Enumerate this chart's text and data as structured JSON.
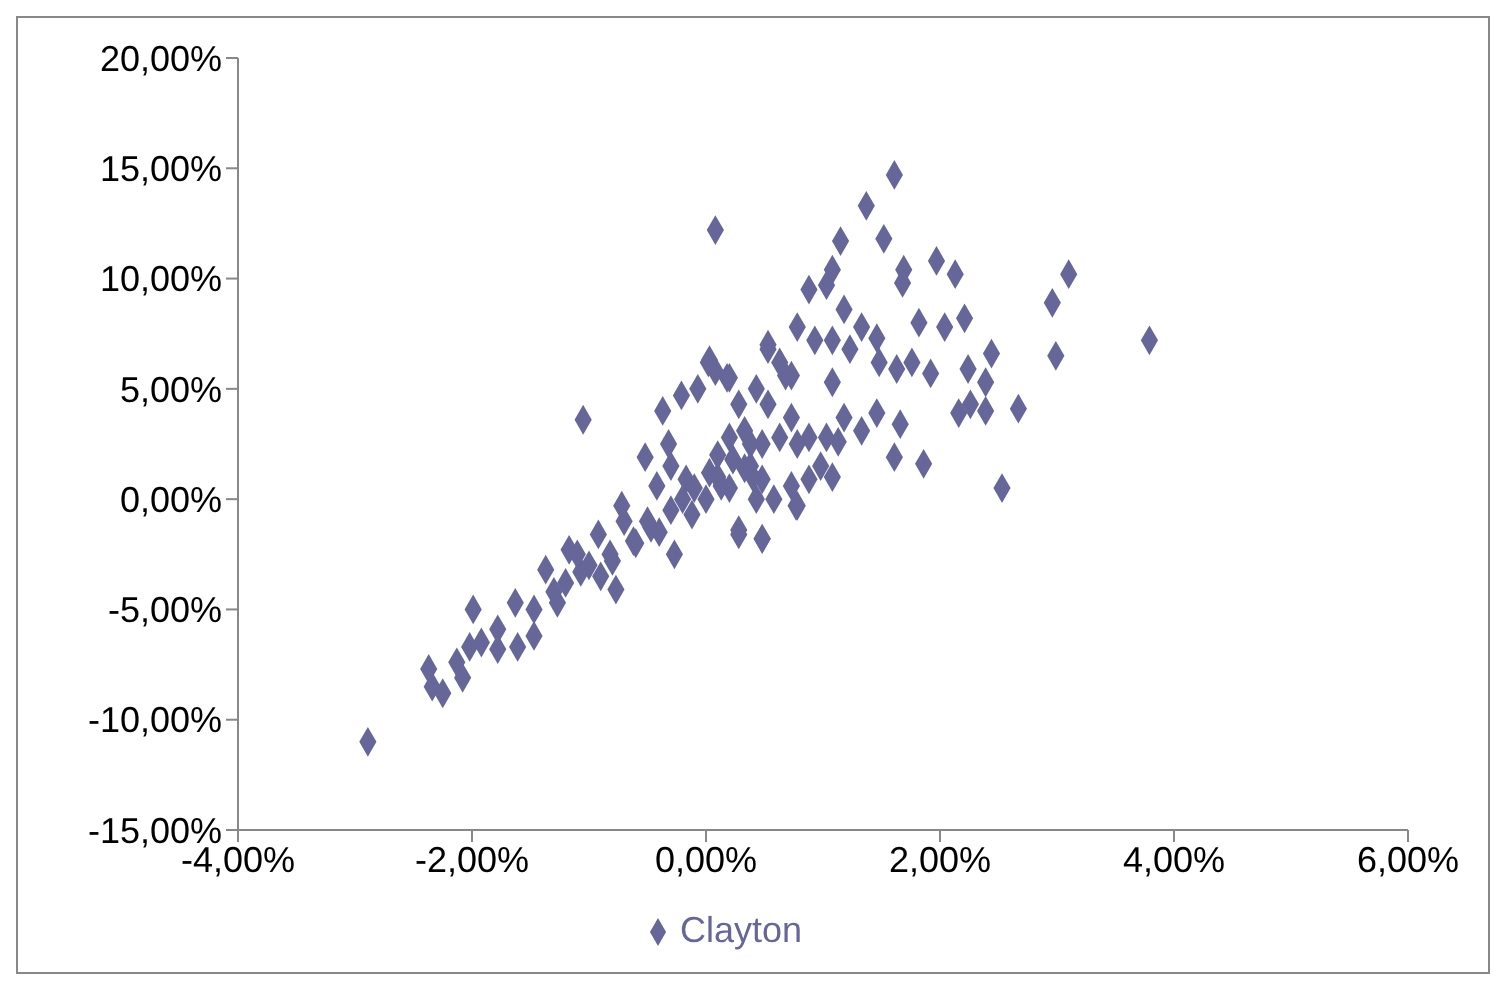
{
  "chart_data": {
    "type": "scatter",
    "legend": "bottom",
    "marker": "diamond",
    "xlim": [
      -4,
      6
    ],
    "xticks": [
      {
        "value": -4,
        "label": "-4,00%"
      },
      {
        "value": -2,
        "label": "-2,00%"
      },
      {
        "value": 0,
        "label": "0,00%"
      },
      {
        "value": 2,
        "label": "2,00%"
      },
      {
        "value": 4,
        "label": "4,00%"
      },
      {
        "value": 6,
        "label": "6,00%"
      }
    ],
    "ylim": [
      -15,
      20
    ],
    "yticks": [
      {
        "value": -15,
        "label": "-15,00%"
      },
      {
        "value": -10,
        "label": "-10,00%"
      },
      {
        "value": -5,
        "label": "-5,00%"
      },
      {
        "value": 0,
        "label": "0,00%"
      },
      {
        "value": 5,
        "label": "5,00%"
      },
      {
        "value": 10,
        "label": "10,00%"
      },
      {
        "value": 15,
        "label": "15,00%"
      },
      {
        "value": 20,
        "label": "20,00%"
      }
    ],
    "series": [
      {
        "name": "Clayton",
        "color": "#666699",
        "x": [
          -2.89,
          -2.37,
          -2.34,
          -2.25,
          -2.13,
          -2.08,
          -1.99,
          -2.02,
          -1.92,
          -1.78,
          -1.78,
          -1.63,
          -1.61,
          -1.47,
          -1.47,
          -1.37,
          -1.27,
          -1.17,
          -1.05,
          -1.07,
          -0.92,
          -0.82,
          -0.77,
          -0.72,
          -0.62,
          -0.52,
          -0.47,
          -0.37,
          -0.32,
          -0.21,
          -0.17,
          -0.12,
          -0.07,
          0.02,
          0.08,
          0.08,
          0.18,
          0.03,
          0.13,
          0.28,
          0.48,
          0.43,
          0.53,
          0.68,
          0.78,
          0.23,
          0.38,
          -0.27,
          0.33,
          -0.42,
          1.61,
          1.37,
          1.52,
          1.15,
          1.08,
          0.88,
          1.03,
          1.69,
          1.68,
          1.97,
          2.13,
          2.96,
          3.1,
          3.79,
          2.99,
          2.44,
          2.21,
          2.04,
          1.82,
          1.18,
          0.78,
          0.53,
          0.63,
          0.73,
          0.93,
          1.08,
          1.33,
          1.46,
          1.23,
          1.48,
          1.63,
          1.76,
          1.92,
          2.24,
          2.39,
          2.26,
          2.16,
          2.39,
          2.67,
          2.53,
          1.86,
          1.61,
          1.66,
          1.46,
          1.33,
          1.18,
          1.13,
          1.03,
          1.08,
          0.88,
          0.88,
          1.08,
          0.78,
          0.73,
          0.63,
          0.53,
          0.43,
          0.28,
          0.33,
          0.48,
          0.38,
          0.23,
          0.2,
          0.03,
          0.48,
          0.28,
          0.77,
          0.58,
          0.98,
          0.48,
          0.73,
          -0.5,
          -0.3,
          -0.2,
          -0.1,
          0,
          0.1,
          0.2,
          -0.4,
          -0.6,
          -0.8,
          -1,
          -1.2,
          -0.9,
          -0.7,
          -0.3,
          0.1,
          0.2,
          0.4,
          -1.3,
          -1.1
        ],
        "values": [
          -11,
          -7.7,
          -8.5,
          -8.8,
          -7.4,
          -8.1,
          -5,
          -6.7,
          -6.5,
          -5.9,
          -6.8,
          -4.7,
          -6.7,
          -6.2,
          -5,
          -3.2,
          -4.7,
          -2.3,
          3.6,
          -3.3,
          -1.6,
          -2.5,
          -4.1,
          -0.3,
          -1.9,
          1.9,
          -1.3,
          4,
          2.5,
          4.7,
          0.9,
          -0.7,
          5,
          6.2,
          12.2,
          5.8,
          5.5,
          1.2,
          0.6,
          -1.6,
          -1.8,
          0,
          6.8,
          5.6,
          -0.3,
          1.8,
          2.5,
          -2.5,
          1.4,
          0.6,
          14.7,
          13.3,
          11.8,
          11.7,
          10.4,
          9.5,
          9.7,
          10.4,
          9.8,
          10.8,
          10.2,
          8.9,
          10.2,
          7.2,
          6.5,
          6.6,
          8.2,
          7.8,
          8,
          8.6,
          7.8,
          7,
          6.2,
          5.6,
          7.2,
          7.2,
          7.8,
          7.3,
          6.8,
          6.2,
          5.9,
          6.2,
          5.7,
          5.9,
          5.3,
          4.3,
          3.9,
          4,
          4.1,
          0.5,
          1.6,
          1.9,
          3.4,
          3.9,
          3.1,
          3.7,
          2.6,
          2.8,
          5.3,
          2.8,
          0.9,
          1,
          2.5,
          3.7,
          2.8,
          4.3,
          5,
          4.3,
          3.1,
          2.5,
          1.5,
          1.8,
          5.5,
          6.3,
          -1.8,
          -1.4,
          -0.3,
          0,
          1.5,
          0.9,
          0.6,
          -1,
          -0.5,
          0,
          0.5,
          0,
          1,
          0.5,
          -1.5,
          -2,
          -2.8,
          -3,
          -3.8,
          -3.5,
          -1,
          1.5,
          2,
          2.8,
          1,
          -4.2,
          -2.5
        ]
      }
    ]
  }
}
